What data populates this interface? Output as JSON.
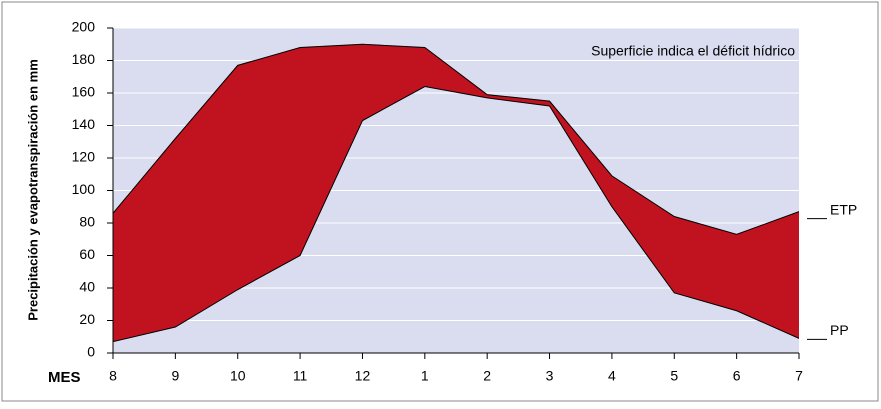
{
  "chart_data": {
    "type": "line",
    "annotation": "Superficie indica el déficit hídrico",
    "y_label": "Precipitación y evapotranspiración en mm",
    "x_label": "MES",
    "categories": [
      "8",
      "9",
      "10",
      "11",
      "12",
      "1",
      "2",
      "3",
      "4",
      "5",
      "6",
      "7"
    ],
    "series": [
      {
        "name": "ETP",
        "color": "#000000",
        "values": [
          86,
          132,
          177,
          188,
          190,
          188,
          159,
          155,
          109,
          84,
          73,
          87
        ]
      },
      {
        "name": "PP",
        "color": "#000000",
        "values": [
          7,
          16,
          39,
          60,
          143,
          164,
          157,
          152,
          90,
          37,
          26,
          9
        ]
      }
    ],
    "fill_color": "#c1121f",
    "plot_background": "#d9ddef",
    "ylim": [
      0,
      200
    ],
    "yticks": [
      0,
      20,
      40,
      60,
      80,
      100,
      120,
      140,
      160,
      180,
      200
    ],
    "grid": true
  }
}
